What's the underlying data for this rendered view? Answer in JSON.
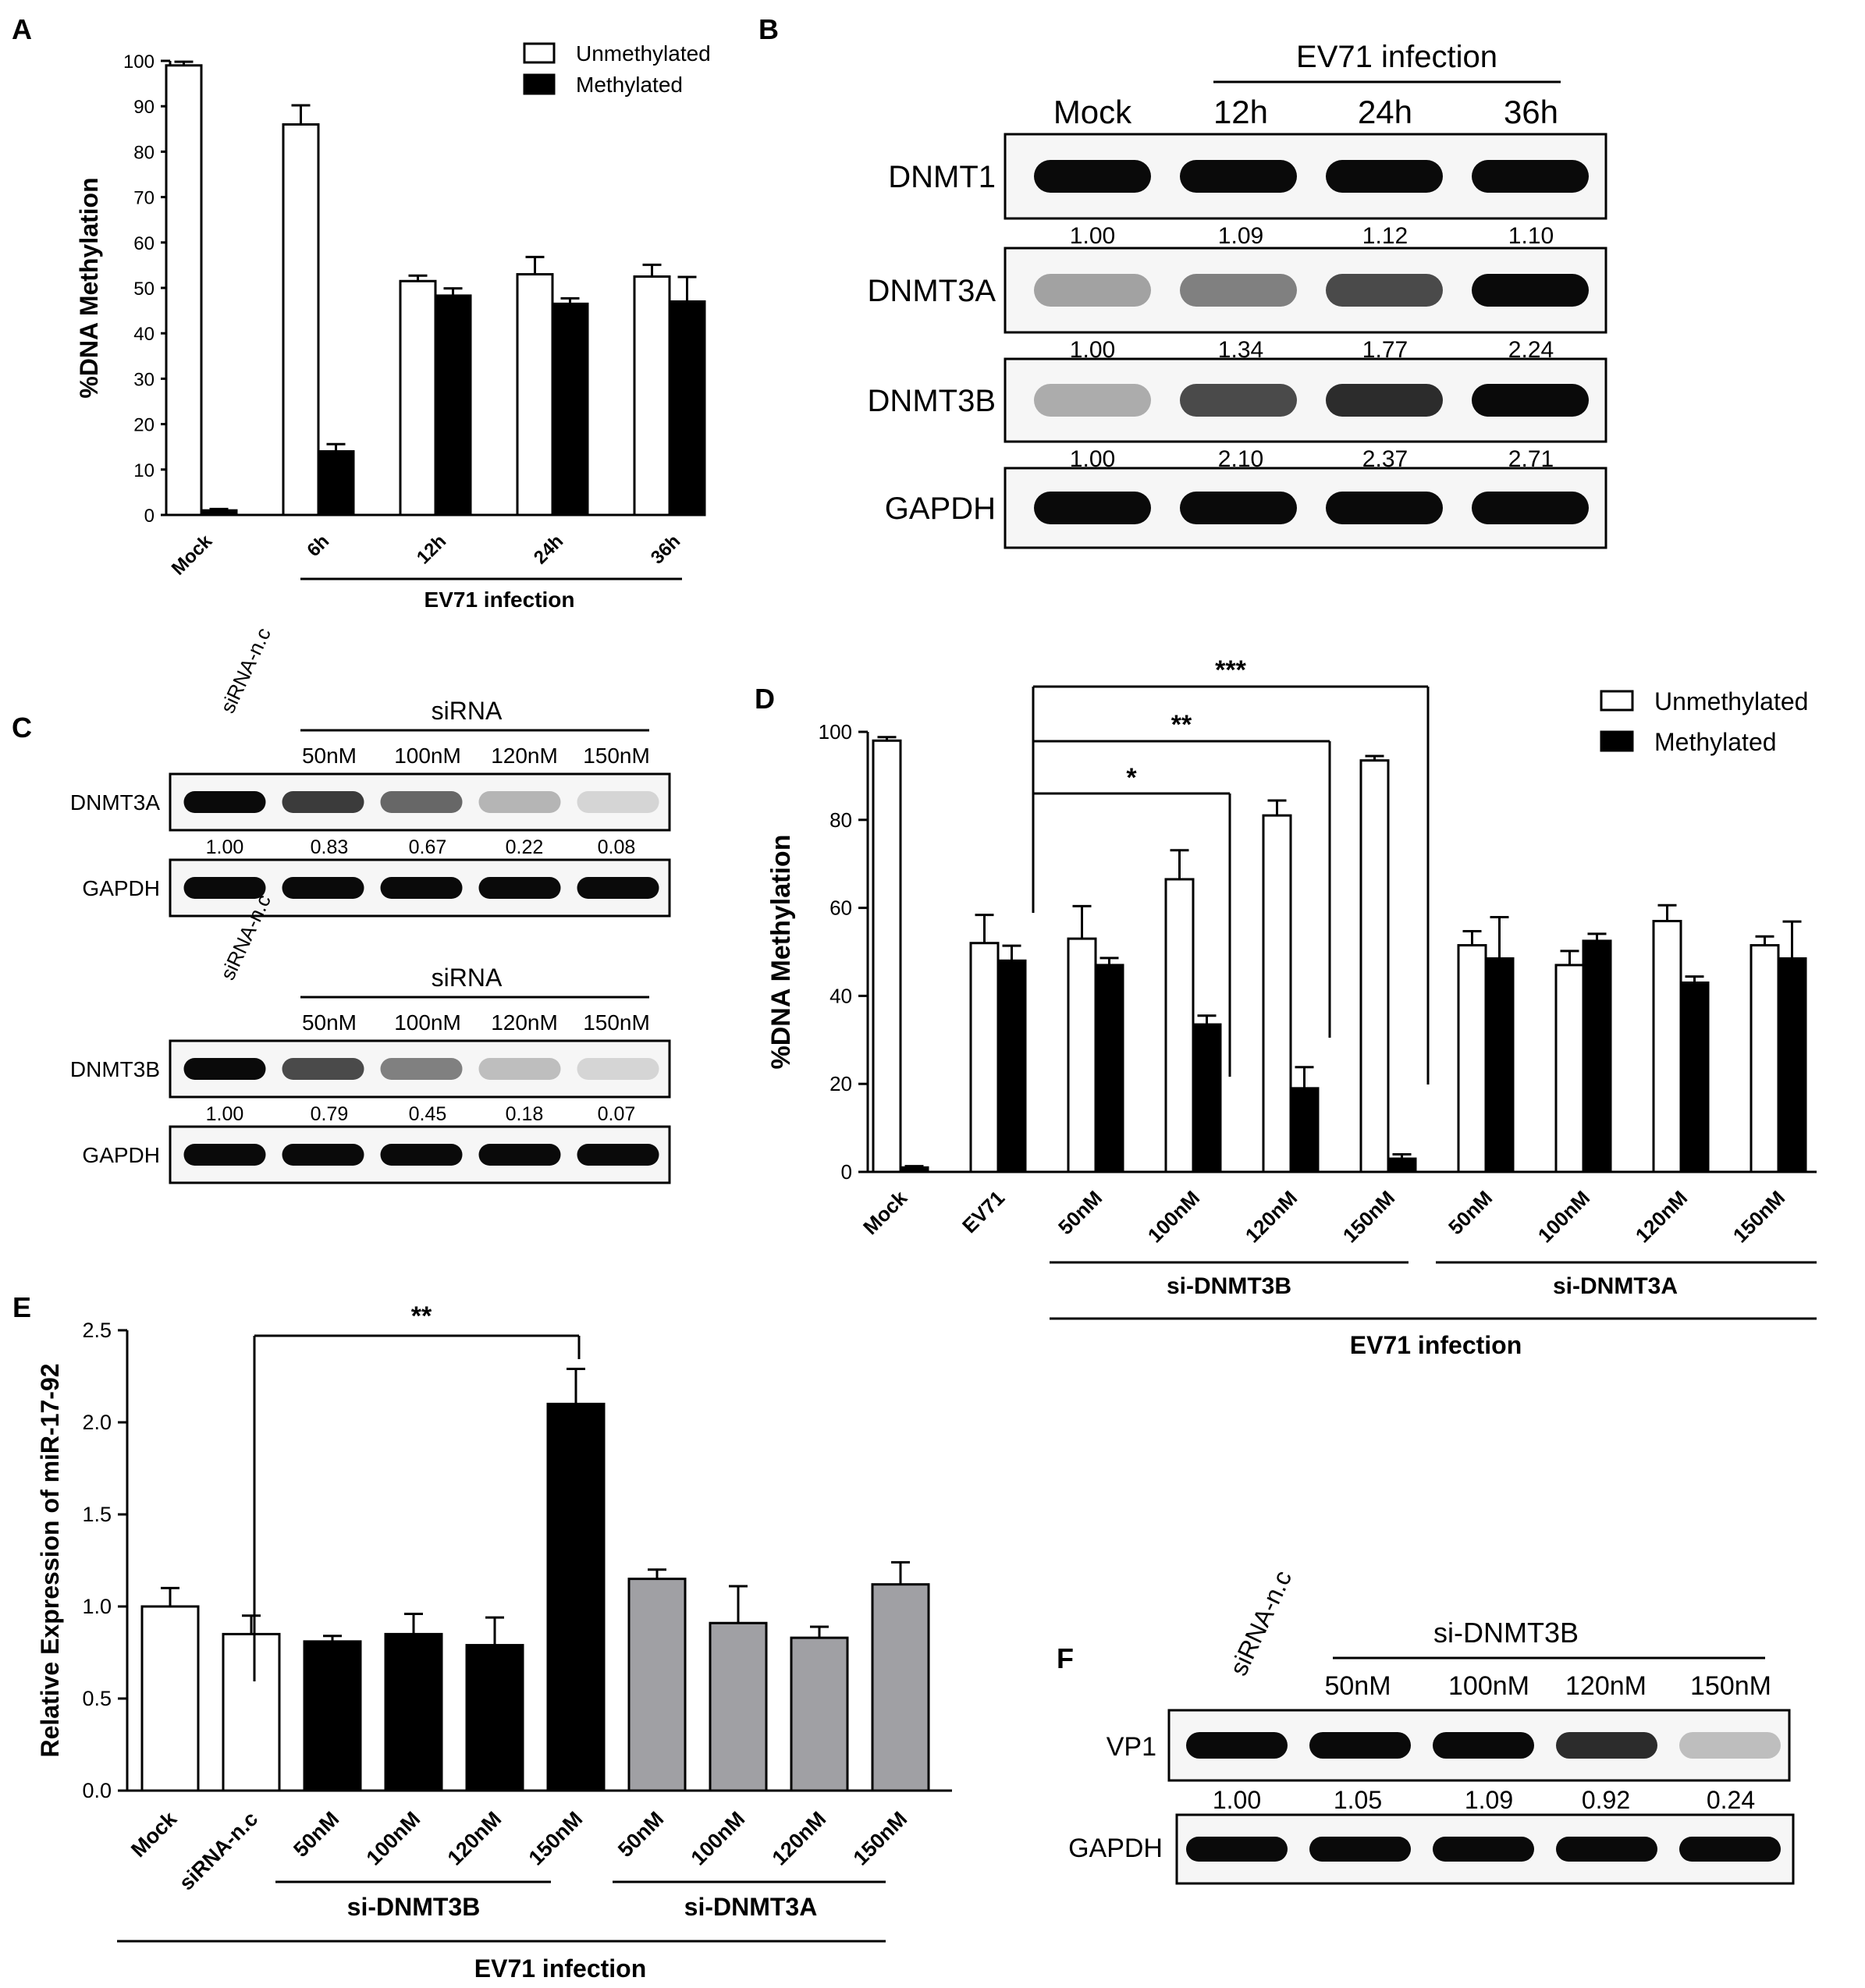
{
  "chart_data": [
    {
      "panel": "A",
      "type": "bar",
      "categories": [
        "Mock",
        "6h",
        "12h",
        "24h",
        "36h"
      ],
      "series": [
        {
          "name": "Unmethylated",
          "values": [
            99,
            86,
            51.5,
            53,
            52.5
          ],
          "errors": [
            0.8,
            4.2,
            1.2,
            3.8,
            2.6
          ],
          "color": "#ffffff"
        },
        {
          "name": "Methylated",
          "values": [
            1,
            14,
            48.3,
            46.5,
            47
          ],
          "errors": [
            0.3,
            1.6,
            1.6,
            1.2,
            5.4
          ],
          "color": "#000000"
        }
      ],
      "ylabel": "%DNA Methylation",
      "ylim": [
        0,
        100
      ],
      "yticks": [
        "0",
        "10",
        "20",
        "30",
        "40",
        "50",
        "60",
        "70",
        "80",
        "90",
        "100"
      ],
      "group_label": "EV71 infection",
      "legend": "top-right"
    },
    {
      "panel": "D",
      "type": "bar",
      "categories": [
        "Mock",
        "EV71",
        "50nM",
        "100nM",
        "120nM",
        "150nM",
        "50nM",
        "100nM",
        "120nM",
        "150nM"
      ],
      "series": [
        {
          "name": "Unmethylated",
          "values": [
            98,
            52,
            53,
            66.5,
            81,
            93.5,
            51.5,
            47,
            57,
            51.5
          ],
          "errors": [
            0.8,
            6.4,
            7.4,
            6.6,
            3.4,
            1.0,
            3.2,
            3.2,
            3.6,
            2.0
          ],
          "color": "#ffffff"
        },
        {
          "name": "Methylated",
          "values": [
            1,
            48,
            47,
            33.5,
            19,
            3,
            48.5,
            52.5,
            43,
            48.5
          ],
          "errors": [
            0.3,
            3.4,
            1.6,
            2.0,
            4.8,
            1.0,
            9.4,
            1.6,
            1.4,
            8.4
          ],
          "color": "#000000"
        }
      ],
      "ylabel": "%DNA Methylation",
      "ylim": [
        0,
        100
      ],
      "yticks": [
        "0",
        "20",
        "40",
        "60",
        "80",
        "100"
      ],
      "groups": [
        "si-DNMT3B",
        "si-DNMT3A"
      ],
      "group_label": "EV71 infection",
      "significance": [
        "*",
        "**",
        "***"
      ],
      "legend": "top-right"
    },
    {
      "panel": "E",
      "type": "bar",
      "categories": [
        "Mock",
        "siRNA-n.c",
        "50nM",
        "100nM",
        "120nM",
        "150nM",
        "50nM",
        "100nM",
        "120nM",
        "150nM"
      ],
      "values": [
        1.0,
        0.85,
        0.81,
        0.85,
        0.79,
        2.1,
        1.15,
        0.91,
        0.83,
        1.12
      ],
      "errors": [
        0.1,
        0.1,
        0.03,
        0.11,
        0.15,
        0.19,
        0.05,
        0.2,
        0.06,
        0.12
      ],
      "colors": [
        "#ffffff",
        "#ffffff",
        "#000000",
        "#000000",
        "#000000",
        "#000000",
        "#a0a0a4",
        "#a0a0a4",
        "#a0a0a4",
        "#a0a0a4"
      ],
      "ylabel": "Relative Expression of miR-17-92",
      "ylim": [
        0,
        2.5
      ],
      "yticks": [
        "0.0",
        "0.5",
        "1.0",
        "1.5",
        "2.0",
        "2.5"
      ],
      "groups": [
        "si-DNMT3B",
        "si-DNMT3A"
      ],
      "group_label": "EV71 infection",
      "significance": [
        "**"
      ]
    }
  ],
  "panel_labels": [
    "A",
    "B",
    "C",
    "D",
    "E",
    "F"
  ],
  "blot_b": {
    "header": "EV71 infection",
    "lanes": [
      "Mock",
      "12h",
      "24h",
      "36h"
    ],
    "rows": [
      {
        "label": "DNMT1",
        "values": [
          "1.00",
          "1.09",
          "1.12",
          "1.10"
        ],
        "intensity": [
          1,
          1,
          1,
          1
        ]
      },
      {
        "label": "DNMT3A",
        "values": [
          "1.00",
          "1.34",
          "1.77",
          "2.24"
        ],
        "intensity": [
          0.45,
          0.6,
          0.8,
          1
        ]
      },
      {
        "label": "DNMT3B",
        "values": [
          "1.00",
          "2.10",
          "2.37",
          "2.71"
        ],
        "intensity": [
          0.4,
          0.8,
          0.9,
          1
        ]
      },
      {
        "label": "GAPDH",
        "values": [],
        "intensity": [
          1,
          1,
          1,
          1
        ]
      }
    ]
  },
  "blot_c1": {
    "first_lane": "siRNA-n.c",
    "header": "siRNA",
    "lanes": [
      "50nM",
      "100nM",
      "120nM",
      "150nM"
    ],
    "rows": [
      {
        "label": "DNMT3A",
        "values": [
          "1.00",
          "0.83",
          "0.67",
          "0.22",
          "0.08"
        ],
        "intensity": [
          1,
          0.85,
          0.7,
          0.35,
          0.15
        ]
      },
      {
        "label": "GAPDH",
        "values": [],
        "intensity": [
          1,
          1,
          1,
          1,
          1
        ]
      }
    ]
  },
  "blot_c2": {
    "first_lane": "siRNA-n.c",
    "header": "siRNA",
    "lanes": [
      "50nM",
      "100nM",
      "120nM",
      "150nM"
    ],
    "rows": [
      {
        "label": "DNMT3B",
        "values": [
          "1.00",
          "0.79",
          "0.45",
          "0.18",
          "0.07"
        ],
        "intensity": [
          1,
          0.8,
          0.6,
          0.3,
          0.15
        ]
      },
      {
        "label": "GAPDH",
        "values": [],
        "intensity": [
          1,
          1,
          1,
          1,
          1
        ]
      }
    ]
  },
  "blot_f": {
    "first_lane": "siRNA-n.c",
    "header": "si-DNMT3B",
    "lanes": [
      "50nM",
      "100nM",
      "120nM",
      "150nM"
    ],
    "rows": [
      {
        "label": "VP1",
        "values": [
          "1.00",
          "1.05",
          "1.09",
          "0.92",
          "0.24"
        ],
        "intensity": [
          1,
          1,
          1,
          0.9,
          0.3
        ]
      },
      {
        "label": "GAPDH",
        "values": [],
        "intensity": [
          1,
          1,
          1,
          1,
          1
        ]
      }
    ]
  }
}
